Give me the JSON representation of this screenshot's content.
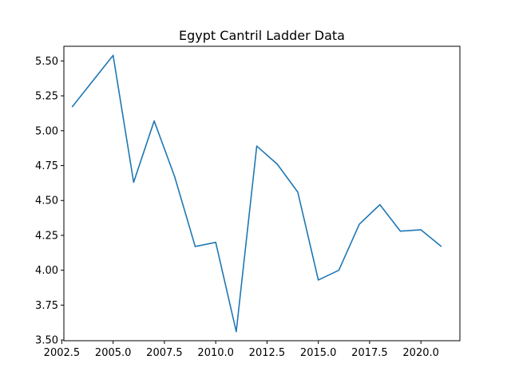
{
  "chart_data": {
    "type": "line",
    "title": "Egypt Cantril Ladder Data",
    "xlabel": "",
    "ylabel": "",
    "xlim": [
      2002.6,
      2021.9
    ],
    "ylim": [
      3.495,
      5.605
    ],
    "x_ticks": [
      2002.5,
      2005.0,
      2007.5,
      2010.0,
      2012.5,
      2015.0,
      2017.5,
      2020.0
    ],
    "x_tick_labels": [
      "2002.5",
      "2005.0",
      "2007.5",
      "2010.0",
      "2012.5",
      "2015.0",
      "2017.5",
      "2020.0"
    ],
    "y_ticks": [
      3.5,
      3.75,
      4.0,
      4.25,
      4.5,
      4.75,
      5.0,
      5.25,
      5.5
    ],
    "y_tick_labels": [
      "3.50",
      "3.75",
      "4.00",
      "4.25",
      "4.50",
      "4.75",
      "5.00",
      "5.25",
      "5.50"
    ],
    "grid": false,
    "series": [
      {
        "color": "#1f77b4",
        "x": [
          2003,
          2005,
          2006,
          2007,
          2008,
          2009,
          2010,
          2011,
          2012,
          2013,
          2014,
          2015,
          2016,
          2017,
          2018,
          2019,
          2020,
          2021
        ],
        "y": [
          5.17,
          5.54,
          4.63,
          5.07,
          4.67,
          4.17,
          4.2,
          3.56,
          4.89,
          4.76,
          4.56,
          3.93,
          4.0,
          4.33,
          4.47,
          4.28,
          4.29,
          4.17
        ]
      }
    ]
  }
}
